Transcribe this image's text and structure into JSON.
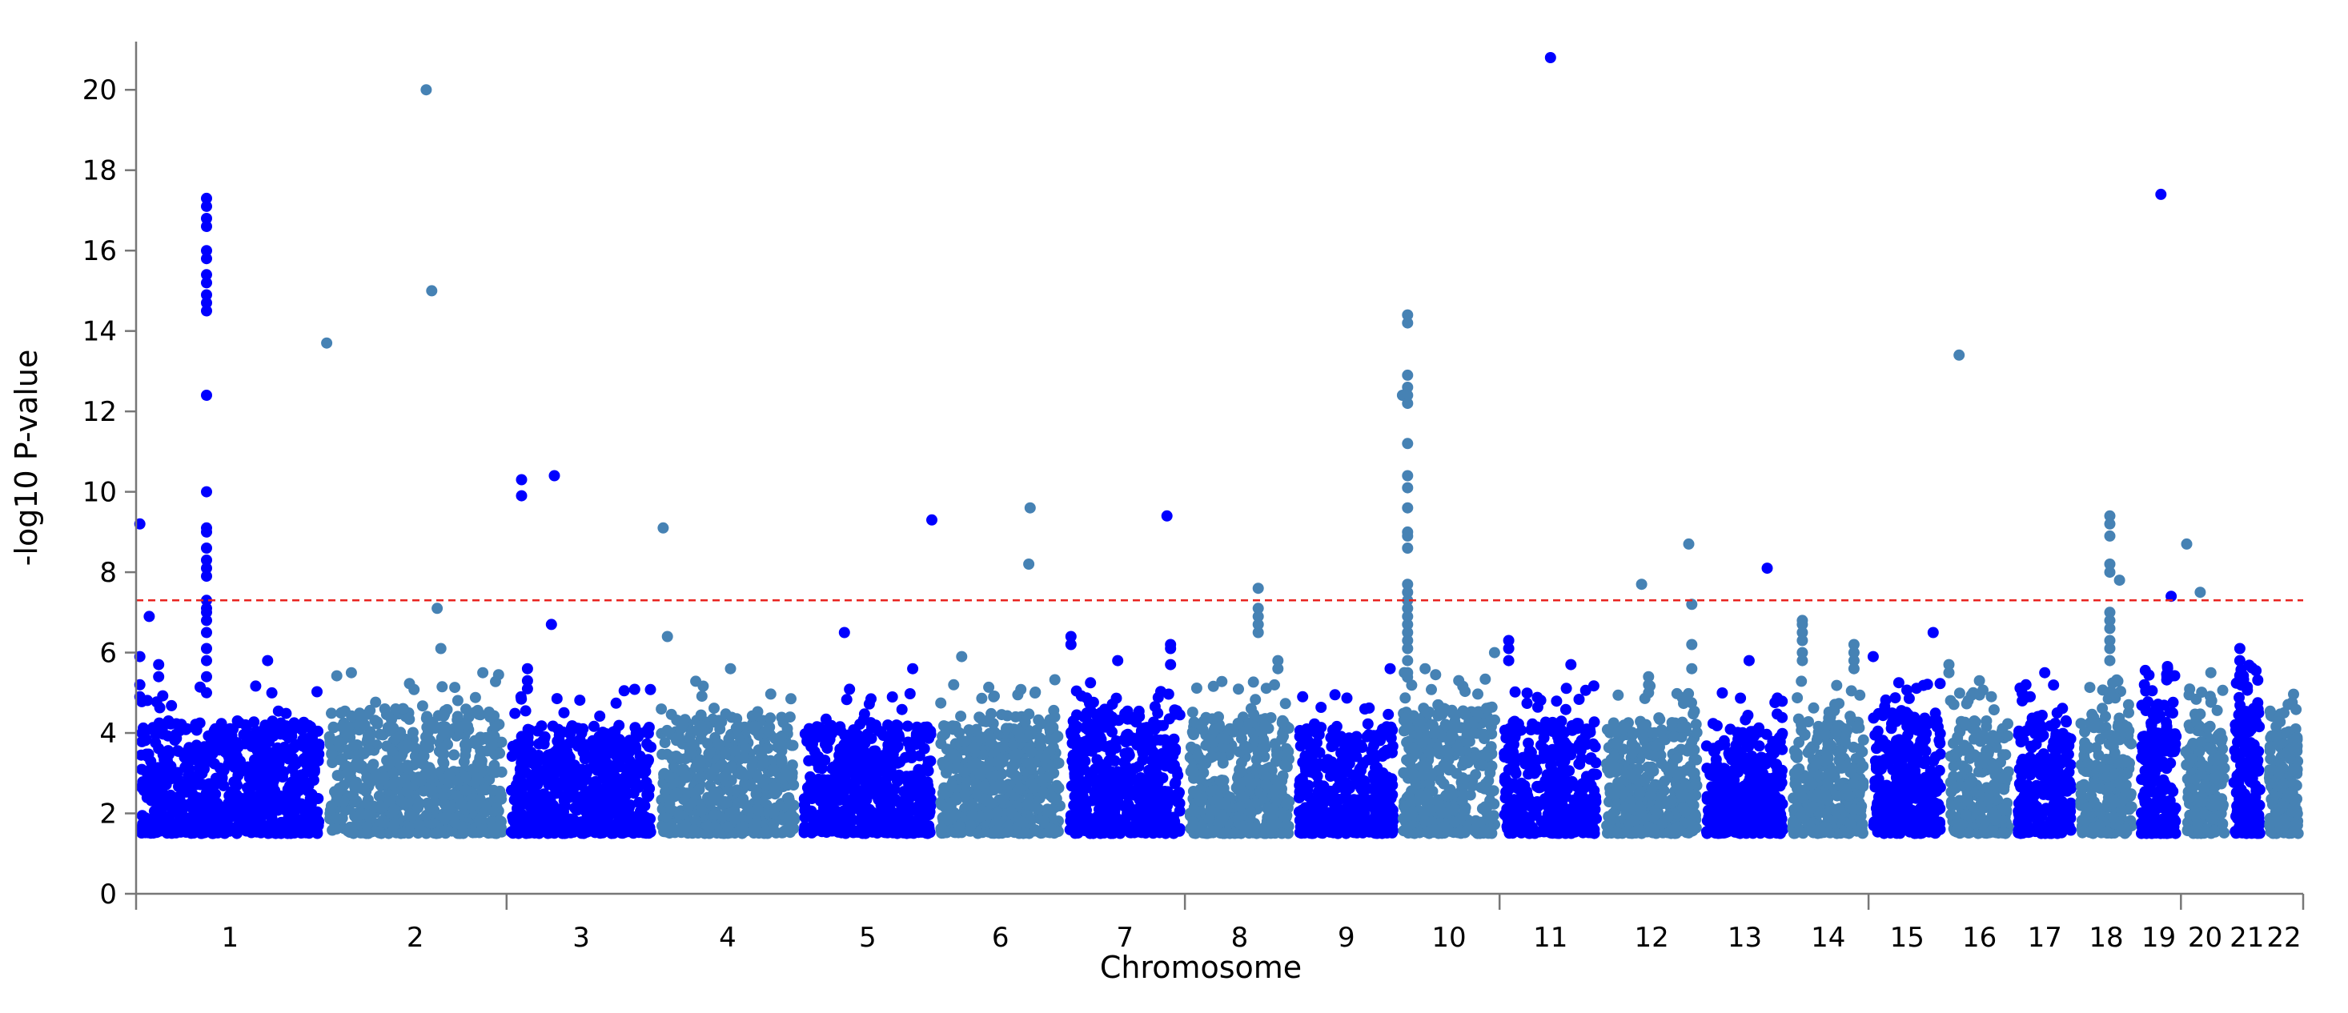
{
  "chart_data": {
    "type": "scatter",
    "subtype": "manhattan",
    "title": "",
    "xlabel": "Chromosome",
    "ylabel": "-log10 P-value",
    "ylim": [
      0,
      21
    ],
    "yticks": [
      "0",
      "2",
      "4",
      "6",
      "8",
      "10",
      "12",
      "14",
      "16",
      "18",
      "20"
    ],
    "grid": false,
    "significance_threshold": 7.3,
    "colors": {
      "odd": "#0000ff",
      "even": "#4682b4",
      "threshold": "#e8231f"
    },
    "baseline_min": 1.5,
    "chromosomes": [
      {
        "label": "1",
        "length": 249,
        "base_max": 4.3
      },
      {
        "label": "2",
        "length": 242,
        "base_max": 4.6
      },
      {
        "label": "3",
        "length": 198,
        "base_max": 4.2
      },
      {
        "label": "4",
        "length": 190,
        "base_max": 4.4
      },
      {
        "label": "5",
        "length": 181,
        "base_max": 4.2
      },
      {
        "label": "6",
        "length": 171,
        "base_max": 4.5
      },
      {
        "label": "7",
        "length": 159,
        "base_max": 4.6
      },
      {
        "label": "8",
        "length": 145,
        "base_max": 4.4
      },
      {
        "label": "9",
        "length": 138,
        "base_max": 4.1
      },
      {
        "label": "10",
        "length": 134,
        "base_max": 4.7
      },
      {
        "label": "11",
        "length": 135,
        "base_max": 4.3
      },
      {
        "label": "12",
        "length": 133,
        "base_max": 4.3
      },
      {
        "label": "13",
        "length": 114,
        "base_max": 4.1
      },
      {
        "label": "14",
        "length": 107,
        "base_max": 4.4
      },
      {
        "label": "15",
        "length": 102,
        "base_max": 4.5
      },
      {
        "label": "16",
        "length": 90,
        "base_max": 4.3
      },
      {
        "label": "17",
        "length": 83,
        "base_max": 4.3
      },
      {
        "label": "18",
        "length": 80,
        "base_max": 4.5
      },
      {
        "label": "19",
        "length": 59,
        "base_max": 4.8
      },
      {
        "label": "20",
        "length": 64,
        "base_max": 4.2
      },
      {
        "label": "21",
        "length": 47,
        "base_max": 4.9
      },
      {
        "label": "22",
        "length": 51,
        "base_max": 4.1
      }
    ],
    "major_tick_chromosomes": [
      "1",
      "3",
      "8",
      "11",
      "15",
      "20"
    ],
    "peaks": [
      {
        "chr": "1",
        "pos": 0.02,
        "values": [
          9.2,
          5.9,
          5.2,
          4.9
        ]
      },
      {
        "chr": "1",
        "pos": 0.07,
        "values": [
          6.9
        ]
      },
      {
        "chr": "1",
        "pos": 0.12,
        "values": [
          5.7,
          5.4
        ]
      },
      {
        "chr": "1",
        "pos": 0.375,
        "values": [
          17.3,
          17.1,
          16.8,
          16.6,
          16.0,
          15.8,
          15.4,
          15.2,
          14.9,
          14.7,
          14.5,
          12.4,
          10.0,
          9.1,
          9.0,
          8.6,
          8.3,
          8.1,
          7.9,
          7.3,
          7.1,
          7.0,
          6.8,
          6.5,
          6.1,
          5.8,
          5.4,
          5.0
        ]
      },
      {
        "chr": "1",
        "pos": 0.7,
        "values": [
          5.8
        ]
      },
      {
        "chr": "2",
        "pos": 0.015,
        "values": [
          13.7
        ]
      },
      {
        "chr": "2",
        "pos": 0.15,
        "values": [
          5.5
        ]
      },
      {
        "chr": "2",
        "pos": 0.56,
        "values": [
          20.0
        ]
      },
      {
        "chr": "2",
        "pos": 0.59,
        "values": [
          15.0
        ]
      },
      {
        "chr": "2",
        "pos": 0.62,
        "values": [
          7.1
        ]
      },
      {
        "chr": "2",
        "pos": 0.64,
        "values": [
          6.1
        ]
      },
      {
        "chr": "2",
        "pos": 0.87,
        "values": [
          5.5
        ]
      },
      {
        "chr": "3",
        "pos": 0.1,
        "values": [
          10.3,
          9.9
        ]
      },
      {
        "chr": "3",
        "pos": 0.14,
        "values": [
          5.6,
          5.3,
          5.1
        ]
      },
      {
        "chr": "3",
        "pos": 0.32,
        "values": [
          10.4
        ]
      },
      {
        "chr": "3",
        "pos": 0.3,
        "values": [
          6.7
        ]
      },
      {
        "chr": "4",
        "pos": 0.05,
        "values": [
          9.1
        ]
      },
      {
        "chr": "4",
        "pos": 0.08,
        "values": [
          6.4
        ]
      },
      {
        "chr": "4",
        "pos": 0.52,
        "values": [
          5.6
        ]
      },
      {
        "chr": "5",
        "pos": 0.33,
        "values": [
          6.5
        ]
      },
      {
        "chr": "5",
        "pos": 0.97,
        "values": [
          9.3
        ]
      },
      {
        "chr": "5",
        "pos": 0.83,
        "values": [
          5.6
        ]
      },
      {
        "chr": "6",
        "pos": 0.2,
        "values": [
          5.9
        ]
      },
      {
        "chr": "6",
        "pos": 0.73,
        "values": [
          9.6
        ]
      },
      {
        "chr": "6",
        "pos": 0.72,
        "values": [
          8.2
        ]
      },
      {
        "chr": "7",
        "pos": 0.05,
        "values": [
          6.4,
          6.2
        ]
      },
      {
        "chr": "7",
        "pos": 0.44,
        "values": [
          5.8
        ]
      },
      {
        "chr": "7",
        "pos": 0.85,
        "values": [
          9.4
        ]
      },
      {
        "chr": "7",
        "pos": 0.88,
        "values": [
          6.2,
          6.1,
          5.7
        ]
      },
      {
        "chr": "8",
        "pos": 0.67,
        "values": [
          7.6,
          7.1,
          6.9,
          6.7,
          6.5
        ]
      },
      {
        "chr": "8",
        "pos": 0.85,
        "values": [
          5.8,
          5.6
        ]
      },
      {
        "chr": "9",
        "pos": 0.08,
        "values": [
          4.9
        ]
      },
      {
        "chr": "9",
        "pos": 0.92,
        "values": [
          5.6
        ]
      },
      {
        "chr": "10",
        "pos": 0.04,
        "values": [
          12.4
        ]
      },
      {
        "chr": "10",
        "pos": 0.09,
        "values": [
          14.4,
          14.2,
          12.9,
          12.6,
          12.4,
          12.2,
          11.2,
          10.4,
          10.1,
          9.6,
          9.0,
          8.9,
          8.6,
          7.7,
          7.5,
          7.3,
          7.1,
          6.9,
          6.7,
          6.5,
          6.3,
          6.1,
          5.8,
          5.5
        ]
      },
      {
        "chr": "10",
        "pos": 0.95,
        "values": [
          6.0
        ]
      },
      {
        "chr": "11",
        "pos": 0.09,
        "values": [
          6.3,
          6.1,
          5.8
        ]
      },
      {
        "chr": "11",
        "pos": 0.5,
        "values": [
          20.8
        ]
      },
      {
        "chr": "11",
        "pos": 0.7,
        "values": [
          5.7
        ]
      },
      {
        "chr": "12",
        "pos": 0.4,
        "values": [
          7.7
        ]
      },
      {
        "chr": "12",
        "pos": 0.47,
        "values": [
          5.4,
          5.2,
          5.0
        ]
      },
      {
        "chr": "12",
        "pos": 0.87,
        "values": [
          8.7
        ]
      },
      {
        "chr": "12",
        "pos": 0.9,
        "values": [
          7.2,
          6.2,
          5.6
        ]
      },
      {
        "chr": "13",
        "pos": 0.76,
        "values": [
          8.1
        ]
      },
      {
        "chr": "13",
        "pos": 0.55,
        "values": [
          5.8
        ]
      },
      {
        "chr": "14",
        "pos": 0.18,
        "values": [
          6.8,
          6.7,
          6.5,
          6.3,
          6.0,
          5.8
        ]
      },
      {
        "chr": "14",
        "pos": 0.82,
        "values": [
          6.2,
          6.0,
          5.8,
          5.6
        ]
      },
      {
        "chr": "15",
        "pos": 0.06,
        "values": [
          5.9
        ]
      },
      {
        "chr": "15",
        "pos": 0.84,
        "values": [
          6.5
        ]
      },
      {
        "chr": "16",
        "pos": 0.05,
        "values": [
          5.7,
          5.5
        ]
      },
      {
        "chr": "16",
        "pos": 0.2,
        "values": [
          13.4
        ]
      },
      {
        "chr": "16",
        "pos": 0.5,
        "values": [
          5.3
        ]
      },
      {
        "chr": "17",
        "pos": 0.2,
        "values": [
          5.2
        ]
      },
      {
        "chr": "17",
        "pos": 0.5,
        "values": [
          5.5
        ]
      },
      {
        "chr": "18",
        "pos": 0.56,
        "values": [
          9.4,
          9.2,
          8.9,
          8.2,
          8.0,
          7.0,
          6.8,
          6.6,
          6.3,
          6.1,
          5.8
        ]
      },
      {
        "chr": "18",
        "pos": 0.72,
        "values": [
          7.8
        ]
      },
      {
        "chr": "19",
        "pos": 0.55,
        "values": [
          17.4
        ]
      },
      {
        "chr": "19",
        "pos": 0.78,
        "values": [
          7.4
        ]
      },
      {
        "chr": "20",
        "pos": 0.12,
        "values": [
          8.7
        ]
      },
      {
        "chr": "20",
        "pos": 0.4,
        "values": [
          7.5
        ]
      },
      {
        "chr": "20",
        "pos": 0.62,
        "values": [
          5.5
        ]
      },
      {
        "chr": "21",
        "pos": 0.3,
        "values": [
          6.1,
          5.8
        ]
      },
      {
        "chr": "22",
        "pos": 0.5,
        "values": [
          4.5
        ]
      }
    ]
  }
}
